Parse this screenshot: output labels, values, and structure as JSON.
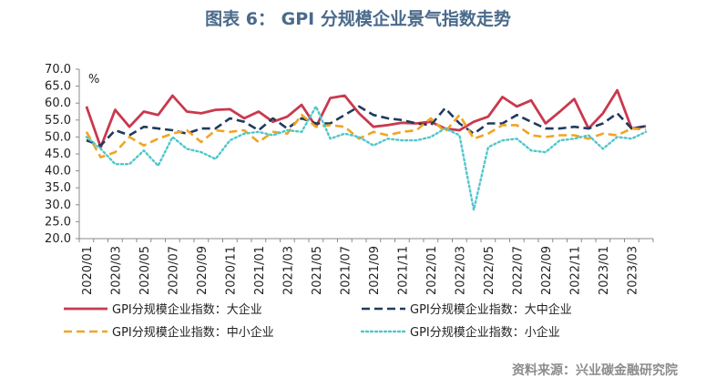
{
  "title": "图表 6： GPI 分规模企业景气指数走势",
  "source": "资料来源：兴业碳金融研究院",
  "chart_data": {
    "type": "line",
    "unit_label": "%",
    "ylim": [
      20,
      70
    ],
    "yticks": [
      "70.0",
      "65.0",
      "60.0",
      "55.0",
      "50.0",
      "45.0",
      "40.0",
      "35.0",
      "30.0",
      "25.0",
      "20.0"
    ],
    "x": [
      "2020/01",
      "2020/02",
      "2020/03",
      "2020/04",
      "2020/05",
      "2020/06",
      "2020/07",
      "2020/08",
      "2020/09",
      "2020/10",
      "2020/11",
      "2020/12",
      "2021/01",
      "2021/02",
      "2021/03",
      "2021/04",
      "2021/05",
      "2021/06",
      "2021/07",
      "2021/08",
      "2021/09",
      "2021/10",
      "2021/11",
      "2021/12",
      "2022/01",
      "2022/02",
      "2022/03",
      "2022/04",
      "2022/05",
      "2022/06",
      "2022/07",
      "2022/08",
      "2022/09",
      "2022/10",
      "2022/11",
      "2022/12",
      "2023/01",
      "2023/02",
      "2023/03",
      "2023/04"
    ],
    "xtick_labels": [
      "2020/01",
      "2020/03",
      "2020/05",
      "2020/07",
      "2020/09",
      "2020/11",
      "2021/01",
      "2021/03",
      "2021/05",
      "2021/07",
      "2021/09",
      "2021/11",
      "2022/01",
      "2022/03",
      "2022/05",
      "2022/07",
      "2022/09",
      "2022/11",
      "2023/01",
      "2023/03"
    ],
    "series": [
      {
        "name": "GPI分规模企业指数：大企业",
        "color": "#c9394e",
        "style": "solid",
        "values": [
          59.0,
          47.0,
          58.0,
          53.0,
          57.5,
          56.5,
          62.2,
          57.5,
          57.0,
          58.0,
          58.2,
          55.5,
          57.5,
          54.5,
          56.0,
          59.5,
          53.0,
          61.5,
          62.2,
          57.0,
          53.0,
          53.5,
          54.2,
          54.0,
          54.5,
          52.5,
          52.0,
          54.5,
          56.0,
          61.8,
          59.0,
          60.8,
          54.0,
          57.5,
          61.2,
          52.5,
          57.0,
          63.8,
          52.5,
          53.2
        ]
      },
      {
        "name": "GPI分规模企业指数：大中企业",
        "color": "#1f3b5c",
        "style": "dashed",
        "values": [
          49.0,
          47.5,
          52.0,
          50.5,
          53.0,
          52.5,
          52.0,
          51.0,
          52.5,
          52.5,
          55.5,
          54.5,
          52.0,
          55.5,
          52.5,
          55.5,
          54.0,
          54.0,
          56.5,
          59.0,
          56.5,
          55.5,
          55.0,
          54.0,
          53.5,
          58.5,
          54.0,
          51.0,
          54.0,
          54.0,
          56.5,
          54.5,
          52.5,
          52.5,
          53.0,
          52.5,
          54.0,
          57.0,
          52.5,
          53.2
        ]
      },
      {
        "name": "GPI分规模企业指数：中小企业",
        "color": "#f0a523",
        "style": "dashed",
        "values": [
          51.5,
          44.0,
          45.5,
          50.0,
          47.5,
          49.5,
          51.0,
          52.0,
          48.5,
          52.0,
          51.5,
          52.0,
          48.5,
          51.5,
          51.0,
          56.5,
          53.0,
          53.5,
          53.0,
          49.5,
          51.5,
          50.5,
          51.5,
          52.0,
          55.5,
          51.5,
          56.5,
          49.5,
          51.0,
          53.5,
          53.5,
          50.5,
          50.0,
          50.5,
          50.5,
          49.5,
          51.0,
          50.5,
          52.5,
          52.2
        ]
      },
      {
        "name": "GPI分规模企业指数：小企业",
        "color": "#4ec7cc",
        "style": "dotted",
        "values": [
          50.0,
          46.5,
          42.0,
          42.0,
          46.0,
          41.5,
          50.0,
          46.5,
          45.5,
          43.5,
          49.0,
          51.0,
          51.5,
          50.5,
          52.0,
          51.5,
          59.0,
          49.5,
          51.0,
          50.0,
          47.5,
          49.5,
          49.0,
          49.0,
          50.0,
          52.5,
          50.5,
          28.5,
          47.0,
          49.0,
          49.5,
          46.0,
          45.5,
          49.0,
          49.5,
          50.5,
          46.5,
          50.0,
          49.5,
          51.5
        ]
      }
    ],
    "grid": false,
    "legend_position": "bottom"
  }
}
